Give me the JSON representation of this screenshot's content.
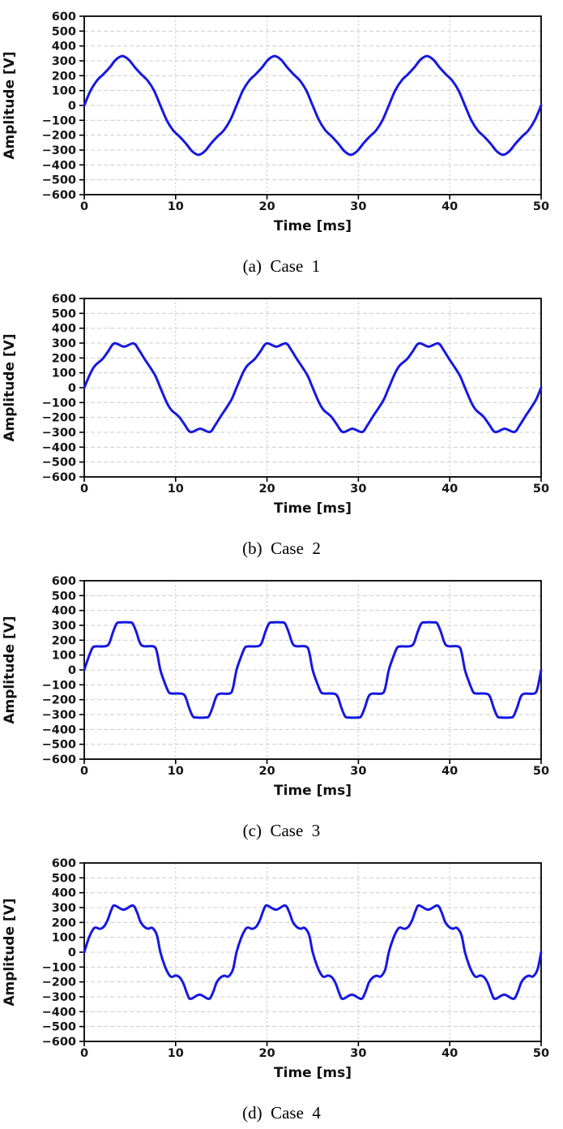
{
  "figure": {
    "xlabel": "Time [ms]",
    "ylabel": "Amplitude [V]",
    "xlim": [
      0,
      50
    ],
    "ylim": [
      -600,
      600
    ],
    "xticks": [
      0,
      10,
      20,
      30,
      40,
      50
    ],
    "yticks": [
      600,
      500,
      400,
      300,
      200,
      100,
      0,
      -100,
      -200,
      -300,
      -400,
      -500,
      -600
    ],
    "grid": "on",
    "line_color": "#1518e0",
    "grid_color": "#cccccc",
    "frame_color": "#000000",
    "tick_label_color": "#151515",
    "background": "#ffffff"
  },
  "chart_data": [
    {
      "type": "line",
      "caption": "(a)  Case  1",
      "shape_note": "near-sinusoidal wave with slight shoulders, peaks about +332/-332 V",
      "xlabel": "Time [ms]",
      "ylabel": "Amplitude [V]",
      "xlim": [
        0,
        50
      ],
      "ylim": [
        -600,
        600
      ],
      "period_ms": 16.6667,
      "cycles_shown": 3,
      "keyframes_one_period": [
        [
          0,
          0
        ],
        [
          0.69,
          100
        ],
        [
          1.39,
          167
        ],
        [
          2.08,
          209
        ],
        [
          2.78,
          255
        ],
        [
          3.47,
          308
        ],
        [
          4.17,
          332
        ],
        [
          4.86,
          308
        ],
        [
          5.56,
          255
        ],
        [
          6.25,
          209
        ],
        [
          6.94,
          167
        ],
        [
          7.64,
          100
        ],
        [
          8.33,
          0
        ],
        [
          9.03,
          -100
        ],
        [
          9.72,
          -167
        ],
        [
          10.42,
          -209
        ],
        [
          11.11,
          -255
        ],
        [
          11.81,
          -308
        ],
        [
          12.5,
          -332
        ],
        [
          13.19,
          -308
        ],
        [
          13.89,
          -255
        ],
        [
          14.58,
          -209
        ],
        [
          15.28,
          -167
        ],
        [
          15.97,
          -100
        ],
        [
          16.6667,
          0
        ]
      ]
    },
    {
      "type": "line",
      "caption": "(b)  Case  2",
      "shape_note": "flattened twin-hump top: humps about 298 V with dip to about 276 V",
      "xlabel": "Time [ms]",
      "ylabel": "Amplitude [V]",
      "xlim": [
        0,
        50
      ],
      "ylim": [
        -600,
        600
      ],
      "period_ms": 16.6667,
      "cycles_shown": 3,
      "keyframes_one_period": [
        [
          0,
          0
        ],
        [
          0.7,
          100
        ],
        [
          1.2,
          150
        ],
        [
          2.0,
          193
        ],
        [
          2.6,
          243
        ],
        [
          3.3,
          298
        ],
        [
          4.35,
          276
        ],
        [
          5.4,
          298
        ],
        [
          6.0,
          252
        ],
        [
          6.6,
          193
        ],
        [
          7.2,
          138
        ],
        [
          7.8,
          78
        ],
        [
          8.33,
          0
        ],
        [
          9.03,
          -100
        ],
        [
          9.53,
          -150
        ],
        [
          10.33,
          -193
        ],
        [
          10.93,
          -243
        ],
        [
          11.63,
          -298
        ],
        [
          12.68,
          -276
        ],
        [
          13.73,
          -298
        ],
        [
          14.33,
          -252
        ],
        [
          14.93,
          -193
        ],
        [
          15.53,
          -138
        ],
        [
          16.13,
          -78
        ],
        [
          16.6667,
          0
        ]
      ]
    },
    {
      "type": "line",
      "caption": "(c)  Case  3",
      "shape_note": "staircase-like wave: shoulders at about +/-160 V, flat tops at about +/-320 V",
      "xlabel": "Time [ms]",
      "ylabel": "Amplitude [V]",
      "xlim": [
        0,
        50
      ],
      "ylim": [
        -600,
        600
      ],
      "period_ms": 16.6667,
      "cycles_shown": 3,
      "keyframes_one_period": [
        [
          0,
          0
        ],
        [
          0.5,
          90
        ],
        [
          0.9,
          148
        ],
        [
          1.25,
          158
        ],
        [
          2.35,
          160
        ],
        [
          2.75,
          182
        ],
        [
          3.15,
          255
        ],
        [
          3.55,
          312
        ],
        [
          3.95,
          320
        ],
        [
          4.95,
          320
        ],
        [
          5.3,
          312
        ],
        [
          5.7,
          255
        ],
        [
          6.1,
          182
        ],
        [
          6.5,
          160
        ],
        [
          7.6,
          158
        ],
        [
          7.95,
          120
        ],
        [
          8.33,
          0
        ],
        [
          8.83,
          -90
        ],
        [
          9.23,
          -148
        ],
        [
          9.58,
          -158
        ],
        [
          10.68,
          -160
        ],
        [
          11.08,
          -182
        ],
        [
          11.48,
          -255
        ],
        [
          11.88,
          -312
        ],
        [
          12.28,
          -320
        ],
        [
          13.28,
          -320
        ],
        [
          13.63,
          -312
        ],
        [
          14.03,
          -255
        ],
        [
          14.43,
          -182
        ],
        [
          14.83,
          -160
        ],
        [
          15.93,
          -158
        ],
        [
          16.28,
          -120
        ],
        [
          16.6667,
          0
        ]
      ]
    },
    {
      "type": "line",
      "caption": "(d)  Case  4",
      "shape_note": "twin-hump top about 314/286 V with rippled shoulders near +/-165 V",
      "xlabel": "Time [ms]",
      "ylabel": "Amplitude [V]",
      "xlim": [
        0,
        50
      ],
      "ylim": [
        -600,
        600
      ],
      "period_ms": 16.6667,
      "cycles_shown": 3,
      "keyframes_one_period": [
        [
          0,
          0
        ],
        [
          0.5,
          95
        ],
        [
          0.95,
          152
        ],
        [
          1.25,
          166
        ],
        [
          1.7,
          157
        ],
        [
          2.15,
          172
        ],
        [
          2.55,
          215
        ],
        [
          2.95,
          282
        ],
        [
          3.3,
          314
        ],
        [
          4.3,
          286
        ],
        [
          5.3,
          314
        ],
        [
          5.75,
          272
        ],
        [
          6.15,
          205
        ],
        [
          6.55,
          172
        ],
        [
          7.0,
          158
        ],
        [
          7.45,
          163
        ],
        [
          7.95,
          115
        ],
        [
          8.33,
          0
        ],
        [
          8.83,
          -95
        ],
        [
          9.28,
          -152
        ],
        [
          9.58,
          -166
        ],
        [
          10.03,
          -157
        ],
        [
          10.48,
          -172
        ],
        [
          10.88,
          -215
        ],
        [
          11.28,
          -282
        ],
        [
          11.63,
          -314
        ],
        [
          12.63,
          -286
        ],
        [
          13.63,
          -314
        ],
        [
          14.08,
          -272
        ],
        [
          14.48,
          -205
        ],
        [
          14.88,
          -172
        ],
        [
          15.33,
          -158
        ],
        [
          15.78,
          -163
        ],
        [
          16.28,
          -115
        ],
        [
          16.6667,
          0
        ]
      ]
    }
  ]
}
